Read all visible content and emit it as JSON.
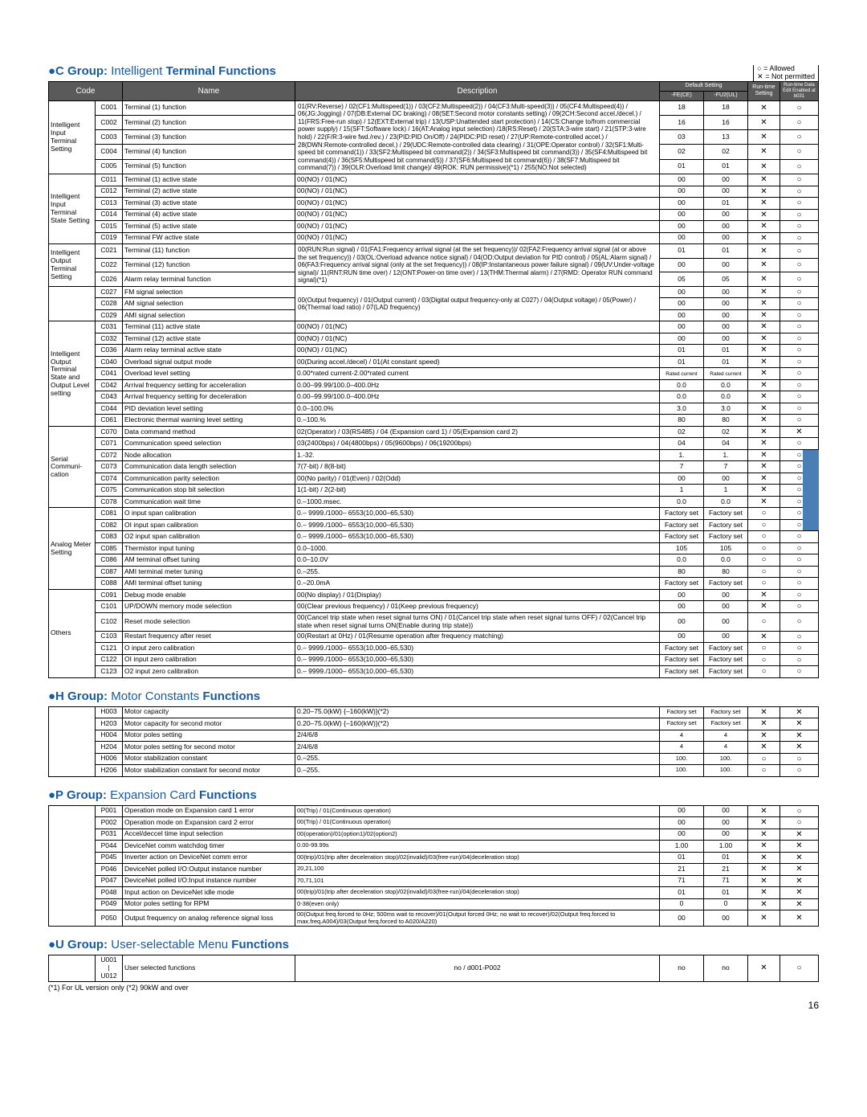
{
  "legend": {
    "allowed": "○ = Allowed",
    "not_permitted": "✕ = Not permitted"
  },
  "sections": {
    "c": {
      "prefix": "●C Group:",
      "light": " Intelligent ",
      "suffix": "Terminal Functions"
    },
    "h": {
      "prefix": "●H Group:",
      "light": " Motor Constants ",
      "suffix": "Functions"
    },
    "p": {
      "prefix": "●P Group:",
      "light": " Expansion Card ",
      "suffix": "Functions"
    },
    "u": {
      "prefix": "●U Group:",
      "light": " User-selectable Menu ",
      "suffix": "Functions"
    }
  },
  "header": {
    "code": "Code",
    "name": "Name",
    "desc": "Description",
    "default": "Default Setting",
    "fe": "-FE(CE)",
    "fu": "-FU2(UL)",
    "runtime": "Run-time Setting",
    "rundata": "Run-time Data Edit Enabled at b031"
  },
  "c_desc_shared": "01(RV:Reverse) / 02(CF1:Multispeed(1)) / 03(CF2:Multispeed(2)) / 04(CF3:Multi-speed(3)) / 05(CF4:Multispeed(4)) / 06(JG:Jogging) / 07(DB:External DC braking) / 08(SET:Second motor constants setting) / 09(2CH:Second accel./decel.) / 11(FRS:Free-run stop) / 12(EXT:External trip) / 13(USP:Unattended start protection) / 14(CS:Change to/from commercial power supply) / 15(SFT:Software lock) / 16(AT:Analog input selection) /18(RS:Reset) / 20(STA:3-wire start) / 21(STP:3-wire hold) / 22(F/R:3-wire fwd./rev.) / 23(PID:PID On/Off) / 24(PIDC:PID reset) / 27(UP:Remote-controlled accel.) / 28(DWN:Remote-controlled decel.) / 29(UDC:Remote-controlled data clearing) / 31(OPE:Operator control) / 32(SF1:Multi-speed bit command(1)) / 33(SF2:Multispeed bit command(2)) / 34(SF3:Multispeed bit command(3)) / 35(SF4:Multispeed bit command(4)) / 36(SF5:Multispeed bit command(5)) / 37(SF6:Multispeed bit command(6)) / 38(SF7:Multispeed bit command(7)) / 39(OLR:Overload limit change)/ 49(ROK: RUN permissive)(*1) / 255(NO:Not selected)",
  "c_iot_desc_shared": "00(RUN:Run signal) / 01(FA1:Frequency arrival signal (at the set frequency))/ 02(FA2:Frequency arrival signal (at or above the set frequency)) / 03(OL:Overload advance notice signal) / 04(OD:Output deviation for PID control) / 05(AL:Alarm signal) / 06(FA3:Frequency arrival signal (only at the set frequency)) / 08(IP:Instantaneous power failure signal) / 09(UV:Under-voltage signal)/ 11(RNT:RUN time over) / 12(ONT:Power-on time over) / 13(THM:Thermal alarm) / 27(RMD: Operator RUN command signal)(*1)",
  "c_fm_desc_shared": "00(Output frequency) / 01(Output current) / 03(Digital output frequency-only at C027) / 04(Output voltage) / 05(Power) / 06(Thermal load ratio) / 07(LAD frequency)",
  "c_groups": [
    {
      "label": "Intelligent Input Terminal Setting",
      "rows": [
        {
          "code": "C001",
          "name": "Terminal (1) function",
          "d1": "18",
          "d2": "18",
          "r": "✕",
          "e": "○",
          "shared": "top"
        },
        {
          "code": "C002",
          "name": "Terminal (2) function",
          "d1": "16",
          "d2": "16",
          "r": "✕",
          "e": "○",
          "shared": "top"
        },
        {
          "code": "C003",
          "name": "Terminal (3) function",
          "d1": "03",
          "d2": "13",
          "r": "✕",
          "e": "○",
          "shared": "top"
        },
        {
          "code": "C004",
          "name": "Terminal (4) function",
          "d1": "02",
          "d2": "02",
          "r": "✕",
          "e": "○",
          "shared": "top"
        },
        {
          "code": "C005",
          "name": "Terminal (5) function",
          "d1": "01",
          "d2": "01",
          "r": "✕",
          "e": "○",
          "shared": "top"
        }
      ]
    },
    {
      "label": "Intelligent Input Terminal State Setting",
      "rows": [
        {
          "code": "C011",
          "name": "Terminal (1) active state",
          "desc": "00(NO) / 01(NC)",
          "d1": "00",
          "d2": "00",
          "r": "✕",
          "e": "○"
        },
        {
          "code": "C012",
          "name": "Terminal (2) active state",
          "desc": "00(NO) / 01(NC)",
          "d1": "00",
          "d2": "00",
          "r": "✕",
          "e": "○"
        },
        {
          "code": "C013",
          "name": "Terminal (3) active state",
          "desc": "00(NO) / 01(NC)",
          "d1": "00",
          "d2": "01",
          "r": "✕",
          "e": "○"
        },
        {
          "code": "C014",
          "name": "Terminal (4) active state",
          "desc": "00(NO) / 01(NC)",
          "d1": "00",
          "d2": "00",
          "r": "✕",
          "e": "○"
        },
        {
          "code": "C015",
          "name": "Terminal (5) active state",
          "desc": "00(NO) / 01(NC)",
          "d1": "00",
          "d2": "00",
          "r": "✕",
          "e": "○"
        },
        {
          "code": "C019",
          "name": "Terminal FW active state",
          "desc": "00(NO) / 01(NC)",
          "d1": "00",
          "d2": "00",
          "r": "✕",
          "e": "○"
        }
      ]
    },
    {
      "label": "Intelligent Output Terminal Setting",
      "rows": [
        {
          "code": "C021",
          "name": "Terminal (11) function",
          "d1": "01",
          "d2": "01",
          "r": "✕",
          "e": "○",
          "shared": "iot"
        },
        {
          "code": "C022",
          "name": "Terminal (12) function",
          "d1": "00",
          "d2": "00",
          "r": "✕",
          "e": "○",
          "shared": "iot"
        },
        {
          "code": "C026",
          "name": "Alarm relay terminal function",
          "d1": "05",
          "d2": "05",
          "r": "✕",
          "e": "○",
          "shared": "iot"
        }
      ]
    },
    {
      "label": "",
      "rows": [
        {
          "code": "C027",
          "name": "FM signal selection",
          "d1": "00",
          "d2": "00",
          "r": "✕",
          "e": "○",
          "shared": "fm"
        },
        {
          "code": "C028",
          "name": "AM signal selection",
          "d1": "00",
          "d2": "00",
          "r": "✕",
          "e": "○",
          "shared": "fm"
        },
        {
          "code": "C029",
          "name": "AMI signal selection",
          "d1": "00",
          "d2": "00",
          "r": "✕",
          "e": "○",
          "shared": "fm"
        }
      ]
    },
    {
      "label": "Intelligent Output Terminal State and Output Level setting",
      "rows": [
        {
          "code": "C031",
          "name": "Terminal (11) active state",
          "desc": "00(NO) / 01(NC)",
          "d1": "00",
          "d2": "00",
          "r": "✕",
          "e": "○"
        },
        {
          "code": "C032",
          "name": "Terminal (12) active state",
          "desc": "00(NO) / 01(NC)",
          "d1": "00",
          "d2": "00",
          "r": "✕",
          "e": "○"
        },
        {
          "code": "C036",
          "name": "Alarm relay terminal active state",
          "desc": "00(NO) / 01(NC)",
          "d1": "01",
          "d2": "01",
          "r": "✕",
          "e": "○"
        },
        {
          "code": "C040",
          "name": "Overload signal output mode",
          "desc": "00(During accel./decel) / 01(At constant speed)",
          "d1": "01",
          "d2": "01",
          "r": "✕",
          "e": "○"
        },
        {
          "code": "C041",
          "name": "Overload level setting",
          "desc": "0.00*rated current-2.00*rated current",
          "d1": "Rated current",
          "d2": "Rated current",
          "r": "✕",
          "e": "○",
          "small": true
        },
        {
          "code": "C042",
          "name": "Arrival frequency setting for acceleration",
          "desc": "0.00–99.99/100.0–400.0Hz",
          "d1": "0.0",
          "d2": "0.0",
          "r": "✕",
          "e": "○"
        },
        {
          "code": "C043",
          "name": "Arrival frequency setting for deceleration",
          "desc": "0.00–99.99/100.0–400.0Hz",
          "d1": "0.0",
          "d2": "0.0",
          "r": "✕",
          "e": "○"
        },
        {
          "code": "C044",
          "name": "PID deviation level setting",
          "desc": "0.0–100.0%",
          "d1": "3.0",
          "d2": "3.0",
          "r": "✕",
          "e": "○"
        },
        {
          "code": "C061",
          "name": "Electronic thermal warning level setting",
          "desc": "0.–100.%",
          "d1": "80",
          "d2": "80",
          "r": "✕",
          "e": "○"
        }
      ]
    },
    {
      "label": "Serial Communi-cation",
      "rows": [
        {
          "code": "C070",
          "name": "Data command method",
          "desc": "02(Operator) / 03(RS485) / 04 (Expansion card 1) / 05(Expansion card 2)",
          "d1": "02",
          "d2": "02",
          "r": "✕",
          "e": "✕"
        },
        {
          "code": "C071",
          "name": "Communication speed selection",
          "desc": "03(2400bps) / 04(4800bps) / 05(9600bps) / 06(19200bps)",
          "d1": "04",
          "d2": "04",
          "r": "✕",
          "e": "○"
        },
        {
          "code": "C072",
          "name": "Node allocation",
          "desc": "1.-32.",
          "d1": "1.",
          "d2": "1.",
          "r": "✕",
          "e": "○"
        },
        {
          "code": "C073",
          "name": "Communication data length selection",
          "desc": "7(7-bit) / 8(8-bit)",
          "d1": "7",
          "d2": "7",
          "r": "✕",
          "e": "○"
        },
        {
          "code": "C074",
          "name": "Communication parity selection",
          "desc": "00(No parity) / 01(Even) / 02(Odd)",
          "d1": "00",
          "d2": "00",
          "r": "✕",
          "e": "○"
        },
        {
          "code": "C075",
          "name": "Communication stop bit selection",
          "desc": "1(1-bit) / 2(2-bit)",
          "d1": "1",
          "d2": "1",
          "r": "✕",
          "e": "○"
        },
        {
          "code": "C078",
          "name": "Communication wait time",
          "desc": "0.–1000.msec.",
          "d1": "0.0",
          "d2": "0.0",
          "r": "✕",
          "e": "○"
        }
      ]
    },
    {
      "label": "Analog Meter Setting",
      "rows": [
        {
          "code": "C081",
          "name": "O input span calibration",
          "desc": "0.– 9999./1000– 6553(10,000–65,530)",
          "d1": "Factory set",
          "d2": "Factory set",
          "r": "○",
          "e": "○"
        },
        {
          "code": "C082",
          "name": "OI input span calibration",
          "desc": "0.– 9999./1000– 6553(10,000–65,530)",
          "d1": "Factory set",
          "d2": "Factory set",
          "r": "○",
          "e": "○"
        },
        {
          "code": "C083",
          "name": "O2 input span calibration",
          "desc": "0.– 9999./1000– 6553(10,000–65,530)",
          "d1": "Factory set",
          "d2": "Factory set",
          "r": "○",
          "e": "○"
        },
        {
          "code": "C085",
          "name": "Thermistor input tuning",
          "desc": "0.0–1000.",
          "d1": "105",
          "d2": "105",
          "r": "○",
          "e": "○"
        },
        {
          "code": "C086",
          "name": "AM terminal offset tuning",
          "desc": "0.0–10.0V",
          "d1": "0.0",
          "d2": "0.0",
          "r": "○",
          "e": "○"
        },
        {
          "code": "C087",
          "name": "AMI terminal meter tuning",
          "desc": "0.–255.",
          "d1": "80",
          "d2": "80",
          "r": "○",
          "e": "○"
        },
        {
          "code": "C088",
          "name": "AMI terminal offset tuning",
          "desc": "0.–20.0mA",
          "d1": "Factory set",
          "d2": "Factory set",
          "r": "○",
          "e": "○"
        }
      ]
    },
    {
      "label": "Others",
      "rows": [
        {
          "code": "C091",
          "name": "Debug mode enable",
          "desc": "00(No display) / 01(Display)",
          "d1": "00",
          "d2": "00",
          "r": "✕",
          "e": "○"
        },
        {
          "code": "C101",
          "name": "UP/DOWN memory mode selection",
          "desc": "00(Clear previous frequency) / 01(Keep previous frequency)",
          "d1": "00",
          "d2": "00",
          "r": "✕",
          "e": "○"
        },
        {
          "code": "C102",
          "name": "Reset mode selection",
          "desc": "00(Cancel trip state when reset signal turns ON) / 01(Cancel trip state when reset signal turns OFF) / 02(Cancel trip state when reset signal turns ON(Enable during trip state))",
          "d1": "00",
          "d2": "00",
          "r": "○",
          "e": "○"
        },
        {
          "code": "C103",
          "name": "Restart frequency after reset",
          "desc": "00(Restart at 0Hz) / 01(Resume operation after frequency matching)",
          "d1": "00",
          "d2": "00",
          "r": "✕",
          "e": "○"
        },
        {
          "code": "C121",
          "name": "O input zero calibration",
          "desc": "0.– 9999./1000– 6553(10,000–65,530)",
          "d1": "Factory set",
          "d2": "Factory set",
          "r": "○",
          "e": "○"
        },
        {
          "code": "C122",
          "name": "OI input zero calibration",
          "desc": "0.– 9999./1000– 6553(10,000–65,530)",
          "d1": "Factory set",
          "d2": "Factory set",
          "r": "○",
          "e": "○"
        },
        {
          "code": "C123",
          "name": "O2 input zero calibration",
          "desc": "0.– 9999./1000– 6553(10,000–65,530)",
          "d1": "Factory set",
          "d2": "Factory set",
          "r": "○",
          "e": "○"
        }
      ]
    }
  ],
  "h_rows": [
    {
      "code": "H003",
      "name": "Motor capacity",
      "desc": "0.20–75.0(kW) {–160(kW)}(*2)",
      "d1": "Factory set",
      "d2": "Factory set",
      "r": "✕",
      "e": "✕"
    },
    {
      "code": "H203",
      "name": "Motor capacity for second motor",
      "desc": "0.20–75.0(kW) {–160(kW)}(*2)",
      "d1": "Factory set",
      "d2": "Factory set",
      "r": "✕",
      "e": "✕"
    },
    {
      "code": "H004",
      "name": "Motor poles setting",
      "desc": "2/4/6/8",
      "d1": "4",
      "d2": "4",
      "r": "✕",
      "e": "✕"
    },
    {
      "code": "H204",
      "name": "Motor poles setting for second motor",
      "desc": "2/4/6/8",
      "d1": "4",
      "d2": "4",
      "r": "✕",
      "e": "✕"
    },
    {
      "code": "H006",
      "name": "Motor stabilization constant",
      "desc": "0.–255.",
      "d1": "100.",
      "d2": "100.",
      "r": "○",
      "e": "○"
    },
    {
      "code": "H206",
      "name": "Motor stabilization constant for second motor",
      "desc": "0.–255.",
      "d1": "100.",
      "d2": "100.",
      "r": "○",
      "e": "○"
    }
  ],
  "p_rows": [
    {
      "code": "P001",
      "name": "Operation mode on Expansion card 1 error",
      "desc": "00(Trip) / 01(Continuous operation)",
      "d1": "00",
      "d2": "00",
      "r": "✕",
      "e": "○"
    },
    {
      "code": "P002",
      "name": "Operation mode on Expansion card 2 error",
      "desc": "00(Trip) / 01(Continuous operation)",
      "d1": "00",
      "d2": "00",
      "r": "✕",
      "e": "○"
    },
    {
      "code": "P031",
      "name": "Accel/deccel time input selection",
      "desc": "00(operation)/01(option1)/02(option2)",
      "d1": "00",
      "d2": "00",
      "r": "✕",
      "e": "✕"
    },
    {
      "code": "P044",
      "name": "DeviceNet comm watchdog timer",
      "desc": "0.00-99.99s",
      "d1": "1.00",
      "d2": "1.00",
      "r": "✕",
      "e": "✕"
    },
    {
      "code": "P045",
      "name": "Inverter action on DeviceNet comm error",
      "desc": "00(trip)/01(trip after deceleration stop)/02(invalid)/03(free-run)/04(deceleration stop)",
      "d1": "01",
      "d2": "01",
      "r": "✕",
      "e": "✕"
    },
    {
      "code": "P046",
      "name": "DeviceNet polled I/O:Output instance number",
      "desc": "20,21,100",
      "d1": "21",
      "d2": "21",
      "r": "✕",
      "e": "✕"
    },
    {
      "code": "P047",
      "name": "DeviceNet polled I/O:Input instance number",
      "desc": "70,71,101",
      "d1": "71",
      "d2": "71",
      "r": "✕",
      "e": "✕"
    },
    {
      "code": "P048",
      "name": "Input action on DeviceNet idle mode",
      "desc": "00(trip)/01(trip after deceleration stop)/02(invalid)/03(free-run)/04(deceleration stop)",
      "d1": "01",
      "d2": "01",
      "r": "✕",
      "e": "✕"
    },
    {
      "code": "P049",
      "name": "Motor poles setting for RPM",
      "desc": "0-38(even only)",
      "d1": "0",
      "d2": "0",
      "r": "✕",
      "e": "✕"
    },
    {
      "code": "P050",
      "name": "Output frequency on analog reference signal loss",
      "desc": "00(Output freq.forced to 0Hz; 500ms wait to recover)/01(Output forced 0Hz; no wait to recover)/02(Output freq.forced to max.freq.A004)/03(Output ferq.forced to A020/A220)",
      "d1": "00",
      "d2": "00",
      "r": "✕",
      "e": "✕"
    }
  ],
  "u_row": {
    "code": "U001\n|\nU012",
    "name": "User selected functions",
    "desc": "no / d001-P002",
    "d1": "no",
    "d2": "no",
    "r": "✕",
    "e": "○"
  },
  "footnote": "(*1) For UL version only   (*2) 90kW and over",
  "page": "16",
  "colors": {
    "title": "#1a5a9e",
    "header_bg": "#5a5a5a",
    "side_tab": "#4a7fb5"
  },
  "colwidths": {
    "group": "58px",
    "code": "34px",
    "name": "215px",
    "default": "55px",
    "run": "40px",
    "edit": "48px"
  }
}
